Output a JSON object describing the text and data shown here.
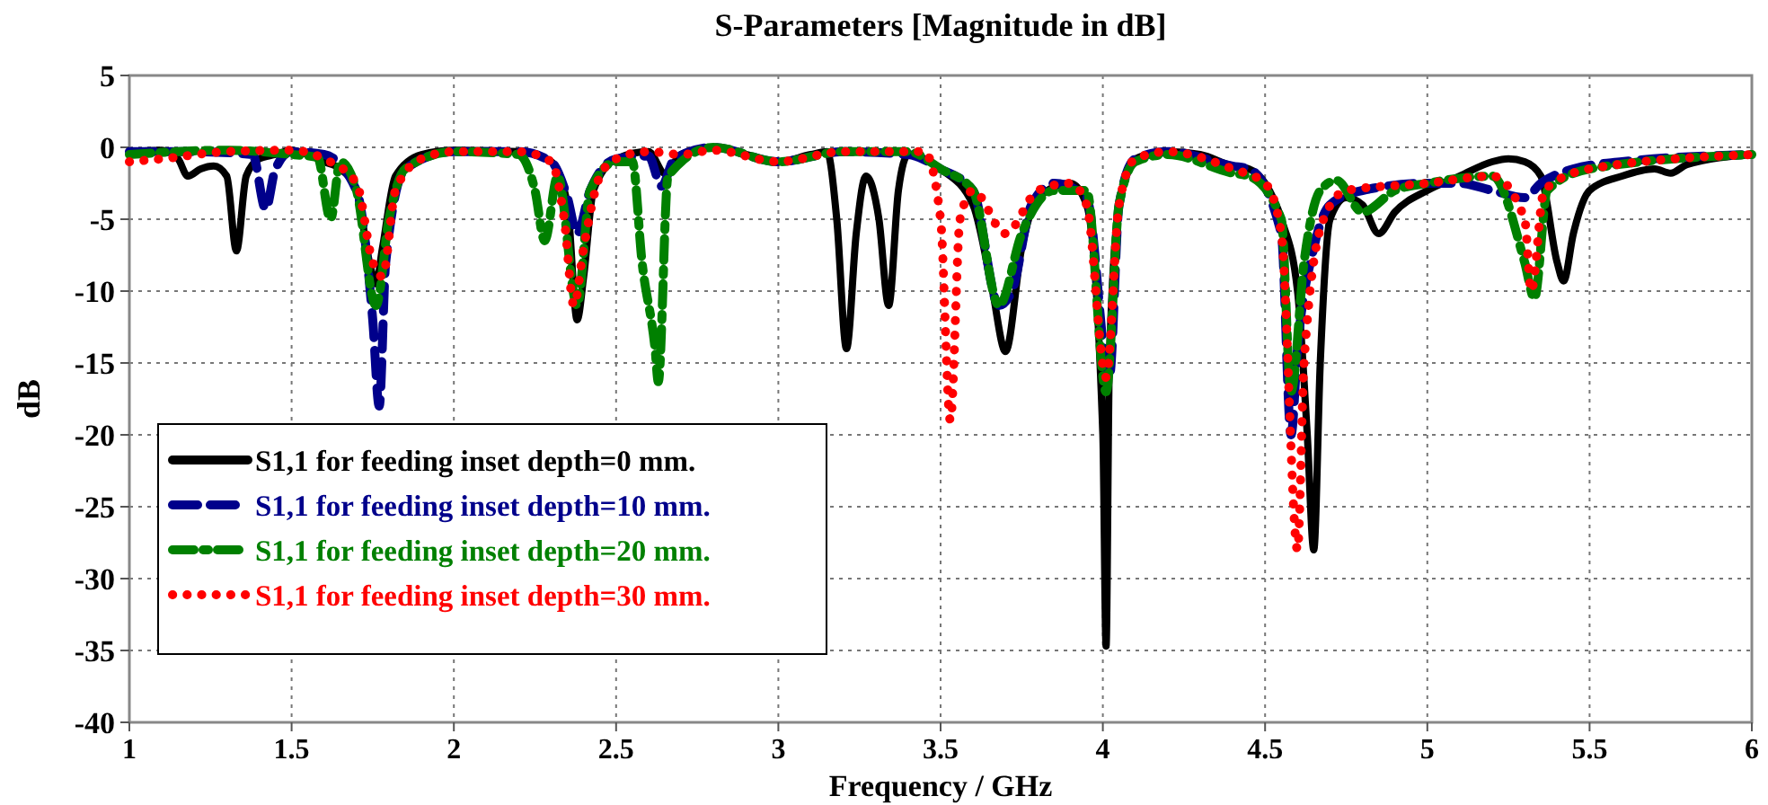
{
  "chart_data": {
    "type": "line",
    "title": "S-Parameters [Magnitude in dB]",
    "xlabel": "Frequency / GHz",
    "ylabel": "dB",
    "xlim": [
      1,
      6
    ],
    "ylim": [
      -40,
      5
    ],
    "xticks": [
      1,
      1.5,
      2,
      2.5,
      3,
      3.5,
      4,
      4.5,
      5,
      5.5,
      6
    ],
    "yticks": [
      -40,
      -35,
      -30,
      -25,
      -20,
      -15,
      -10,
      -5,
      0,
      5
    ],
    "grid": true,
    "legend": "bottom left",
    "series": [
      {
        "name": "S1,1 for feeding inset depth=0 mm.",
        "color": "#000000",
        "line_style": "solid",
        "x": [
          1,
          1.1,
          1.15,
          1.18,
          1.22,
          1.26,
          1.3,
          1.33,
          1.36,
          1.4,
          1.45,
          1.5,
          1.55,
          1.6,
          1.65,
          1.7,
          1.74,
          1.76,
          1.78,
          1.82,
          1.9,
          2,
          2.2,
          2.3,
          2.35,
          2.38,
          2.4,
          2.43,
          2.5,
          2.6,
          2.65,
          2.7,
          2.8,
          2.9,
          3,
          3.1,
          3.15,
          3.18,
          3.21,
          3.24,
          3.27,
          3.31,
          3.34,
          3.37,
          3.4,
          3.45,
          3.5,
          3.6,
          3.66,
          3.7,
          3.75,
          3.8,
          3.9,
          3.95,
          4,
          4.01,
          4.02,
          4.05,
          4.1,
          4.2,
          4.3,
          4.4,
          4.45,
          4.5,
          4.55,
          4.6,
          4.63,
          4.65,
          4.67,
          4.7,
          4.75,
          4.8,
          4.85,
          4.9,
          5,
          5.1,
          5.2,
          5.25,
          5.3,
          5.35,
          5.4,
          5.42,
          5.45,
          5.5,
          5.6,
          5.7,
          5.75,
          5.8,
          6
        ],
        "values": [
          -0.3,
          -0.2,
          -0.8,
          -2,
          -1.5,
          -1.3,
          -2,
          -7.2,
          -2,
          -0.8,
          -0.5,
          -0.2,
          -0.5,
          -1,
          -1.5,
          -3,
          -8,
          -9.5,
          -7,
          -2,
          -0.5,
          -0.2,
          -0.3,
          -1,
          -4,
          -12,
          -9,
          -3,
          -0.8,
          -0.3,
          -1.8,
          -0.5,
          0,
          -0.5,
          -1,
          -0.5,
          -0.3,
          -5,
          -14,
          -6,
          -2,
          -5,
          -11,
          -3,
          -0.5,
          -0.8,
          -1.5,
          -4,
          -10,
          -14.2,
          -7,
          -3.5,
          -2.5,
          -4,
          -20,
          -34.7,
          -15,
          -4,
          -0.8,
          -0.3,
          -0.5,
          -1.3,
          -1.5,
          -2.5,
          -5,
          -10,
          -20,
          -28,
          -15,
          -5,
          -3.5,
          -4,
          -6,
          -4.5,
          -3,
          -2,
          -1,
          -0.8,
          -1,
          -2,
          -8,
          -9.3,
          -6,
          -3,
          -2,
          -1.5,
          -1.8,
          -1.2,
          -0.5
        ]
      },
      {
        "name": "S1,1 for feeding inset depth=10 mm.",
        "color": "#00008b",
        "line_style": "dashed",
        "x": [
          1,
          1.2,
          1.38,
          1.42,
          1.45,
          1.5,
          1.6,
          1.7,
          1.75,
          1.77,
          1.79,
          1.85,
          2,
          2.2,
          2.3,
          2.35,
          2.38,
          2.42,
          2.5,
          2.6,
          2.64,
          2.68,
          2.8,
          3,
          3.2,
          3.4,
          3.5,
          3.6,
          3.68,
          3.72,
          3.78,
          3.85,
          3.95,
          4.02,
          4.05,
          4.1,
          4.2,
          4.4,
          4.45,
          4.55,
          4.58,
          4.6,
          4.65,
          4.7,
          4.8,
          5,
          5.1,
          5.2,
          5.3,
          5.35,
          5.45,
          5.6,
          6
        ],
        "values": [
          -0.3,
          -0.3,
          -0.5,
          -4.3,
          -1.5,
          -0.3,
          -0.5,
          -3,
          -12,
          -18,
          -8,
          -1.5,
          -0.3,
          -0.3,
          -1,
          -3.5,
          -6,
          -3,
          -0.8,
          -0.6,
          -2.7,
          -0.8,
          0,
          -1,
          -0.3,
          -0.5,
          -1.5,
          -3,
          -11,
          -10,
          -4,
          -2.5,
          -3.5,
          -16,
          -4,
          -0.8,
          -0.3,
          -1.3,
          -1.5,
          -6,
          -20,
          -14,
          -7,
          -4,
          -3,
          -2.5,
          -2.5,
          -3,
          -3.5,
          -2.5,
          -1.5,
          -1,
          -0.5
        ]
      },
      {
        "name": "S1,1 for feeding inset depth=20 mm.",
        "color": "#008000",
        "line_style": "dashdot",
        "x": [
          1,
          1.3,
          1.5,
          1.58,
          1.62,
          1.65,
          1.7,
          1.76,
          1.8,
          1.85,
          2,
          2.2,
          2.25,
          2.28,
          2.32,
          2.38,
          2.42,
          2.5,
          2.55,
          2.58,
          2.62,
          2.63,
          2.66,
          2.8,
          3,
          3.2,
          3.4,
          3.5,
          3.6,
          3.68,
          3.75,
          3.85,
          3.95,
          4.01,
          4.05,
          4.1,
          4.2,
          4.4,
          4.45,
          4.55,
          4.58,
          4.62,
          4.67,
          4.72,
          4.8,
          4.9,
          5,
          5.2,
          5.3,
          5.33,
          5.37,
          5.5,
          6
        ],
        "values": [
          -0.5,
          -0.2,
          -0.5,
          -0.7,
          -5,
          -1,
          -3,
          -11,
          -5,
          -1.5,
          -0.3,
          -0.5,
          -3,
          -6.5,
          -2,
          -11,
          -3,
          -1,
          -1,
          -8,
          -14,
          -16.3,
          -2,
          0,
          -1,
          -0.3,
          -0.3,
          -1.5,
          -3,
          -11,
          -6,
          -3,
          -3,
          -17,
          -4,
          -1,
          -0.5,
          -1.8,
          -2,
          -5,
          -17,
          -8,
          -3,
          -2.3,
          -4.5,
          -3,
          -2.5,
          -2,
          -8,
          -10.5,
          -3,
          -1.5,
          -0.5
        ]
      },
      {
        "name": "S1,1 for feeding inset depth=30 mm.",
        "color": "#ff0000",
        "line_style": "dotted",
        "x": [
          1,
          1.1,
          1.3,
          1.5,
          1.6,
          1.7,
          1.75,
          1.78,
          1.82,
          1.9,
          2,
          2.2,
          2.3,
          2.34,
          2.37,
          2.4,
          2.45,
          2.5,
          2.6,
          2.7,
          2.8,
          3,
          3.2,
          3.45,
          3.5,
          3.53,
          3.56,
          3.6,
          3.7,
          3.8,
          3.9,
          3.95,
          4.01,
          4.05,
          4.1,
          4.2,
          4.4,
          4.5,
          4.55,
          4.6,
          4.62,
          4.68,
          4.75,
          5,
          5.2,
          5.3,
          5.32,
          5.36,
          5.5,
          6
        ],
        "values": [
          -1,
          -0.8,
          -0.3,
          -0.2,
          -0.8,
          -2.5,
          -8,
          -9,
          -3,
          -0.8,
          -0.3,
          -0.3,
          -1,
          -5,
          -11,
          -7,
          -2,
          -0.8,
          -0.3,
          -0.5,
          -0.2,
          -1,
          -0.3,
          -0.3,
          -5,
          -19,
          -5,
          -3,
          -6,
          -3,
          -2.5,
          -4,
          -16,
          -4,
          -0.8,
          -0.3,
          -1.5,
          -2.5,
          -6,
          -28,
          -15,
          -5,
          -3,
          -2.5,
          -2,
          -5,
          -10,
          -3,
          -1.5,
          -0.5
        ]
      }
    ]
  }
}
